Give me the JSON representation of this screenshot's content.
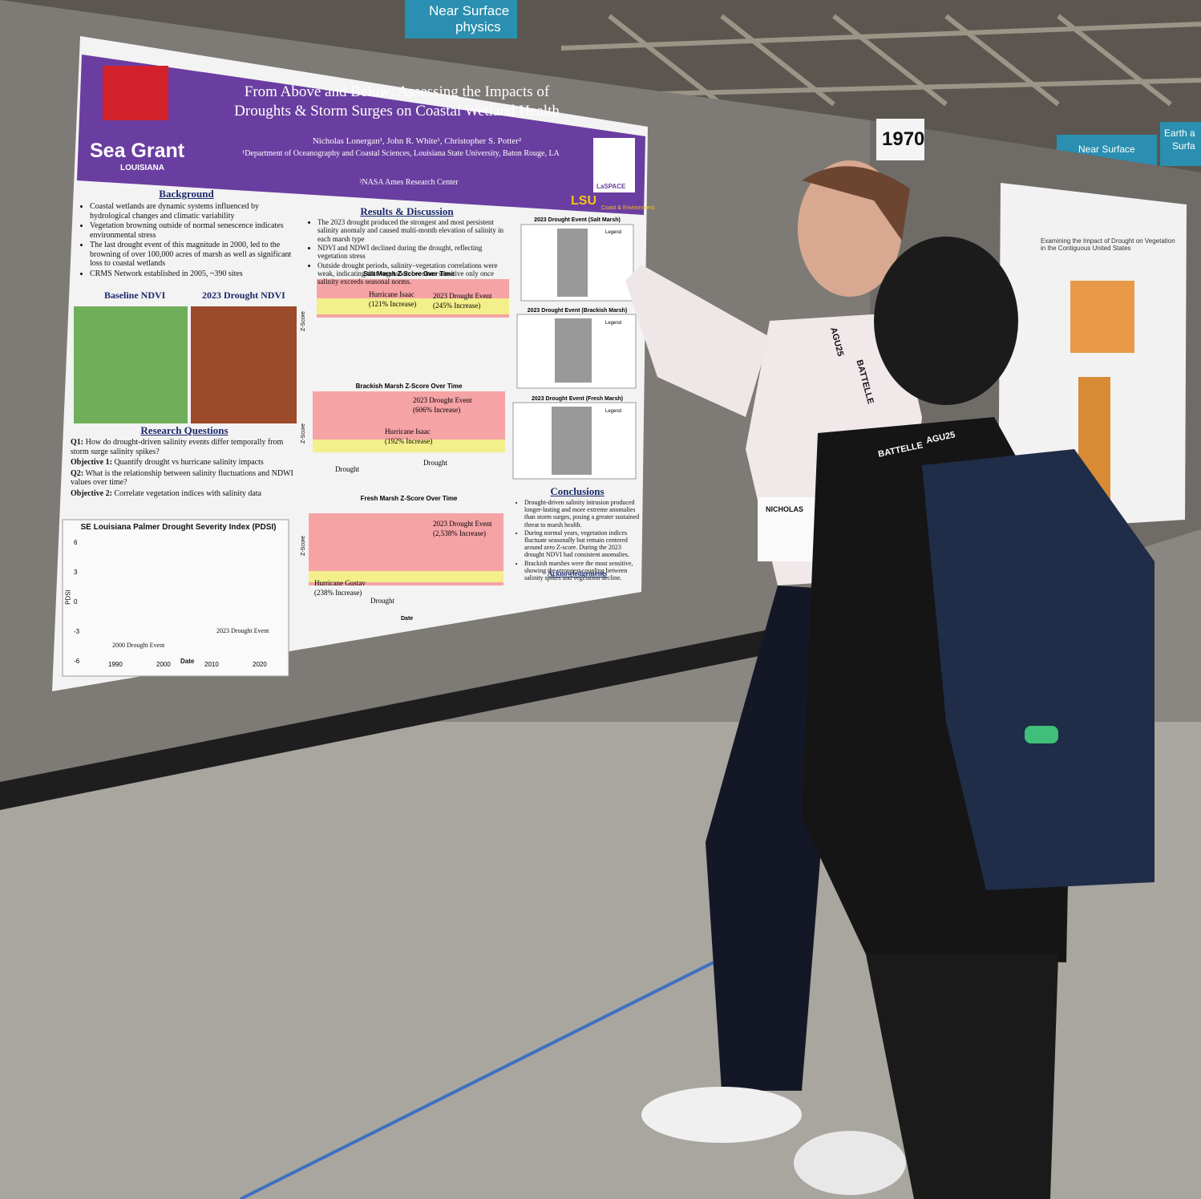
{
  "signs": {
    "top_banner": [
      "Near Surface",
      "physics"
    ],
    "booth_number": "1970",
    "right_banner": "Near Surface",
    "far_banner": [
      "Earth a",
      "Surfa"
    ]
  },
  "poster": {
    "logos": {
      "sea_grant": "Sea Grant",
      "sea_grant_sub": "LOUISIANA",
      "lsu": "LSU",
      "lsu_sub": "Coast & Environment",
      "laspace": "LaSPACE"
    },
    "title": [
      "From Above and Below: Assessing the Impacts of",
      "Droughts & Storm Surges on Coastal Wetland Health"
    ],
    "authors": "Nicholas Lonergan¹, John R. White¹, Christopher S. Potter²",
    "affiliations": [
      "¹Department of Oceanography and Coastal Sciences, Louisiana State University, Baton Rouge, LA",
      "²NASA Ames Research Center"
    ],
    "background": {
      "heading": "Background",
      "bullets": [
        "Coastal wetlands are dynamic systems influenced by hydrological changes and climatic variability",
        "Vegetation browning outside of normal senescence indicates environmental stress",
        "The last drought event of this magnitude in 2000, led to the browning of over 100,000 acres of marsh as well as significant loss to coastal wetlands",
        "CRMS Network established in 2005, ~390 sites"
      ]
    },
    "ndvi": {
      "baseline": "Baseline NDVI",
      "drought": "2023 Drought NDVI"
    },
    "research_questions": {
      "heading": "Research Questions",
      "items": [
        {
          "label": "Q1:",
          "text": "How do drought-driven salinity events differ temporally from storm surge salinity spikes?"
        },
        {
          "label": "Objective 1:",
          "text": "Quantify drought vs hurricane salinity impacts"
        },
        {
          "label": "Q2:",
          "text": "What is the relationship between salinity fluctuations and NDWI values over time?"
        },
        {
          "label": "Objective 2:",
          "text": "Correlate vegetation indices with salinity data"
        }
      ]
    },
    "pdsi": {
      "title": "SE Louisiana Palmer Drought Severity Index (PDSI)",
      "y_label": "PDSI",
      "x_label": "Date",
      "yticks": [
        "6",
        "3",
        "0",
        "-3",
        "-6"
      ],
      "xticks": [
        "1990",
        "2000",
        "2010",
        "2020"
      ],
      "annotations": [
        "2000 Drought Event",
        "2023 Drought Event"
      ]
    },
    "results": {
      "heading": "Results & Discussion",
      "bullets": [
        "The 2023 drought produced the strongest and most persistent salinity anomaly and caused multi-month elevation of salinity in each marsh type",
        "NDVI and NDWI declined during the drought, reflecting vegetation stress",
        "Outside drought periods, salinity–vegetation correlations were weak, indicating that vegetation becomes sensitive only once salinity exceeds seasonal norms."
      ]
    },
    "marsh_charts": [
      {
        "title": "Salt Marsh Z-Score Over Time",
        "y_label": "Z-Score",
        "annotations": [
          "Hurricane Isaac",
          "(121% Increase)",
          "2023 Drought Event",
          "(245% Increase)"
        ]
      },
      {
        "title": "Brackish Marsh Z-Score Over Time",
        "y_label": "Z-Score",
        "annotations": [
          "2023 Drought Event",
          "(606% Increase)",
          "Hurricane Isaac",
          "(192% Increase)",
          "Drought",
          "Drought"
        ]
      },
      {
        "title": "Fresh Marsh Z-Score Over Time",
        "y_label": "Z-Score",
        "x_label": "Date",
        "annotations": [
          "2023 Drought Event",
          "(2,538% Increase)",
          "Hurricane Gustav",
          "(238% Increase)",
          "Drought"
        ]
      }
    ],
    "event_charts": [
      {
        "title": "2023 Drought Event (Salt Marsh)",
        "legend": "Legend"
      },
      {
        "title": "2023 Drought Event (Brackish Marsh)",
        "legend": "Legend"
      },
      {
        "title": "2023 Drought Event (Fresh Marsh)",
        "legend": "Legend"
      }
    ],
    "conclusions": {
      "heading": "Conclusions",
      "bullets": [
        "Drought-driven salinity intrusion produced longer-lasting and more extreme anomalies than storm surges, posing a greater sustained threat to marsh health.",
        "During normal years, vegetation indices fluctuate seasonally but remain centered around zero Z-score. During the 2023 drought NDVI had consistent anomalies.",
        "Brackish marshes were the most sensitive, showing the strongest coupling between salinity spikes and vegetation decline."
      ]
    },
    "acknowledgements": {
      "heading": "Acknowledgements"
    }
  },
  "neighbor_poster": {
    "title": "Examining the Impact of Drought on Vegetation in the Contiguous United States"
  },
  "badges": {
    "lanyard": [
      "AGU25",
      "BATTELLE"
    ],
    "name": "NICHOLAS"
  }
}
